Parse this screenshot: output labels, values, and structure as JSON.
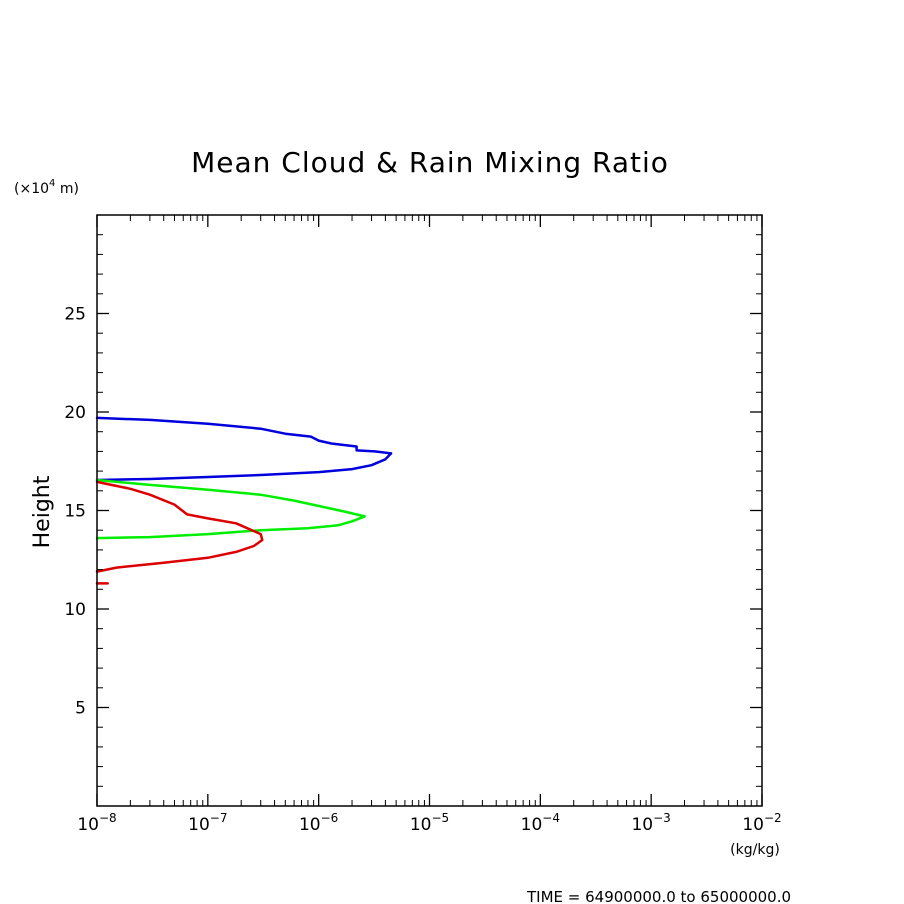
{
  "chart_data": {
    "type": "line",
    "title": "Mean Cloud & Rain Mixing Ratio",
    "ylabel": "Height",
    "y_unit_label": {
      "prefix": "(×10",
      "exponent": "4",
      "suffix": " m)"
    },
    "x_unit_label": "(kg/kg)",
    "xscale": "log",
    "xlim": [
      1e-08,
      0.01
    ],
    "ylim": [
      0,
      30
    ],
    "x_ticks": [
      {
        "base": "10",
        "exp": "−8",
        "value": 1e-08
      },
      {
        "base": "10",
        "exp": "−7",
        "value": 1e-07
      },
      {
        "base": "10",
        "exp": "−6",
        "value": 1e-06
      },
      {
        "base": "10",
        "exp": "−5",
        "value": 1e-05
      },
      {
        "base": "10",
        "exp": "−4",
        "value": 0.0001
      },
      {
        "base": "10",
        "exp": "−3",
        "value": 0.001
      },
      {
        "base": "10",
        "exp": "−2",
        "value": 0.01
      }
    ],
    "y_ticks": [
      "5",
      "10",
      "15",
      "20",
      "25"
    ],
    "grid": false,
    "legend": "none",
    "series": [
      {
        "color": "#0000dd",
        "points": [
          [
            1e-08,
            19.7
          ],
          [
            3e-08,
            19.6
          ],
          [
            1e-07,
            19.4
          ],
          [
            3e-07,
            19.15
          ],
          [
            5e-07,
            18.9
          ],
          [
            8.5e-07,
            18.75
          ],
          [
            1e-06,
            18.55
          ],
          [
            1.3e-06,
            18.4
          ],
          [
            2.2e-06,
            18.25
          ],
          [
            2.2e-06,
            18.05
          ],
          [
            3.2e-06,
            18.0
          ],
          [
            4.5e-06,
            17.9
          ],
          [
            4e-06,
            17.6
          ],
          [
            3e-06,
            17.3
          ],
          [
            2e-06,
            17.1
          ],
          [
            1e-06,
            16.95
          ],
          [
            3e-07,
            16.8
          ],
          [
            1e-07,
            16.7
          ],
          [
            3e-08,
            16.6
          ],
          [
            1e-08,
            16.55
          ]
        ]
      },
      {
        "color": "#00ee00",
        "points": [
          [
            1e-08,
            16.55
          ],
          [
            3e-08,
            16.3
          ],
          [
            1e-07,
            16.05
          ],
          [
            3e-07,
            15.8
          ],
          [
            6e-07,
            15.5
          ],
          [
            1.7e-06,
            14.95
          ],
          [
            2.6e-06,
            14.7
          ],
          [
            2e-06,
            14.45
          ],
          [
            1.5e-06,
            14.25
          ],
          [
            8e-07,
            14.1
          ],
          [
            3e-07,
            14.0
          ],
          [
            1e-07,
            13.8
          ],
          [
            3e-08,
            13.65
          ],
          [
            1e-08,
            13.6
          ]
        ]
      },
      {
        "color": "#dd0000",
        "points": [
          [
            1e-08,
            16.45
          ],
          [
            2e-08,
            16.1
          ],
          [
            3e-08,
            15.8
          ],
          [
            5e-08,
            15.3
          ],
          [
            6.5e-08,
            14.8
          ],
          [
            1e-07,
            14.6
          ],
          [
            1.8e-07,
            14.35
          ],
          [
            3e-07,
            13.8
          ],
          [
            3.1e-07,
            13.5
          ],
          [
            2.6e-07,
            13.2
          ],
          [
            1.8e-07,
            12.9
          ],
          [
            1e-07,
            12.6
          ],
          [
            4e-08,
            12.35
          ],
          [
            1.5e-08,
            12.1
          ],
          [
            1e-08,
            11.9
          ]
        ]
      },
      {
        "color": "#dd0000",
        "points": [
          [
            1e-08,
            11.3
          ],
          [
            1.25e-08,
            11.3
          ]
        ]
      }
    ]
  },
  "footer": {
    "time_range": "TIME = 64900000.0 to 65000000.0"
  }
}
